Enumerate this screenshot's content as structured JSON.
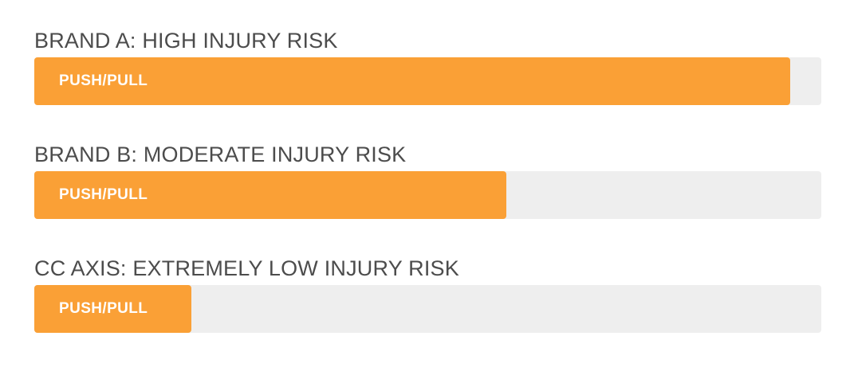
{
  "colors": {
    "bar_fill": "#FAA036",
    "bar_track": "#EEEEEE",
    "heading_text": "#4C4C4C",
    "bar_label_text": "#FFFFFF",
    "page_background": "#FFFFFF"
  },
  "sections": [
    {
      "heading": "BRAND A: HIGH INJURY RISK",
      "bar_label": "PUSH/PULL",
      "percent": 96
    },
    {
      "heading": "BRAND B: MODERATE INJURY RISK",
      "bar_label": "PUSH/PULL",
      "percent": 60
    },
    {
      "heading": "CC AXIS: EXTREMELY LOW INJURY RISK",
      "bar_label": "PUSH/PULL",
      "percent": 20
    }
  ],
  "chart_data": {
    "type": "bar",
    "orientation": "horizontal",
    "categories": [
      "BRAND A: HIGH INJURY RISK",
      "BRAND B: MODERATE INJURY RISK",
      "CC AXIS: EXTREMELY LOW INJURY RISK"
    ],
    "series": [
      {
        "name": "PUSH/PULL",
        "values": [
          96,
          60,
          20
        ]
      }
    ],
    "value_unit": "percent of full track width",
    "xlim": [
      0,
      100
    ],
    "title": "",
    "xlabel": "",
    "ylabel": "",
    "legend": false,
    "grid": false,
    "bar_color": "#FAA036",
    "track_color": "#EEEEEE"
  }
}
